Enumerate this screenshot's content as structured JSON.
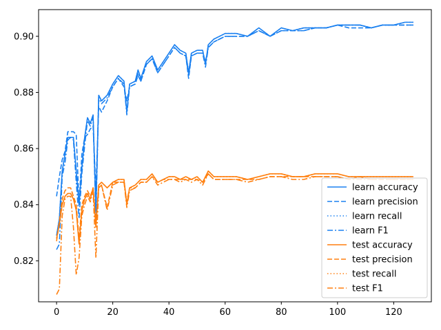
{
  "chart_data": {
    "type": "line",
    "title": "",
    "xlabel": "",
    "ylabel": "",
    "xlim": [
      -6.4,
      133.4
    ],
    "ylim": [
      0.8054,
      0.9095
    ],
    "xticks": [
      0,
      20,
      40,
      60,
      80,
      100,
      120
    ],
    "yticks": [
      0.82,
      0.84,
      0.86,
      0.88,
      0.9
    ],
    "xtick_labels": [
      "0",
      "20",
      "40",
      "60",
      "80",
      "100",
      "120"
    ],
    "ytick_labels": [
      "0.82",
      "0.84",
      "0.86",
      "0.88",
      "0.90"
    ],
    "legend_position": "lower right",
    "colors": {
      "learn": "#1a80f0",
      "test": "#ff7f0e"
    },
    "series": [
      {
        "name": "learn accuracy",
        "group": "learn",
        "style": "solid",
        "x": [
          0,
          1,
          2,
          3,
          4,
          5,
          6,
          7,
          8,
          9,
          10,
          11,
          12,
          13,
          14,
          15,
          16,
          18,
          20,
          22,
          24,
          25,
          26,
          28,
          29,
          30,
          32,
          34,
          36,
          38,
          40,
          42,
          44,
          46,
          47,
          48,
          50,
          52,
          53,
          54,
          56,
          58,
          60,
          64,
          68,
          72,
          76,
          80,
          84,
          88,
          92,
          96,
          100,
          104,
          108,
          112,
          116,
          120,
          124,
          127
        ],
        "y": [
          0.829,
          0.835,
          0.852,
          0.858,
          0.864,
          0.864,
          0.864,
          0.852,
          0.84,
          0.853,
          0.864,
          0.871,
          0.869,
          0.872,
          0.838,
          0.879,
          0.877,
          0.879,
          0.883,
          0.886,
          0.884,
          0.873,
          0.883,
          0.884,
          0.888,
          0.885,
          0.891,
          0.893,
          0.888,
          0.891,
          0.894,
          0.897,
          0.895,
          0.894,
          0.887,
          0.894,
          0.895,
          0.895,
          0.89,
          0.897,
          0.899,
          0.9,
          0.901,
          0.901,
          0.9,
          0.903,
          0.9,
          0.903,
          0.902,
          0.903,
          0.903,
          0.903,
          0.904,
          0.904,
          0.904,
          0.903,
          0.904,
          0.904,
          0.905,
          0.905
        ]
      },
      {
        "name": "learn precision",
        "group": "learn",
        "style": "dashed",
        "x": [
          0,
          1,
          2,
          3,
          4,
          5,
          6,
          7,
          8,
          9,
          10,
          11,
          12,
          13,
          14,
          15,
          16,
          18,
          20,
          22,
          24,
          25,
          26,
          28,
          29,
          30,
          32,
          34,
          36,
          38,
          40,
          42,
          44,
          46,
          47,
          48,
          50,
          52,
          53,
          54,
          56,
          58,
          60,
          64,
          68,
          72,
          76,
          80,
          84,
          88,
          92,
          96,
          100,
          104,
          108,
          112,
          116,
          120,
          124,
          127
        ],
        "y": [
          0.843,
          0.85,
          0.856,
          0.859,
          0.866,
          0.866,
          0.866,
          0.865,
          0.84,
          0.858,
          0.864,
          0.865,
          0.867,
          0.868,
          0.845,
          0.875,
          0.873,
          0.877,
          0.882,
          0.885,
          0.882,
          0.877,
          0.882,
          0.883,
          0.886,
          0.884,
          0.89,
          0.892,
          0.887,
          0.89,
          0.893,
          0.896,
          0.894,
          0.893,
          0.885,
          0.893,
          0.894,
          0.894,
          0.891,
          0.896,
          0.898,
          0.899,
          0.9,
          0.9,
          0.9,
          0.902,
          0.9,
          0.902,
          0.902,
          0.902,
          0.903,
          0.903,
          0.904,
          0.903,
          0.903,
          0.903,
          0.904,
          0.904,
          0.904,
          0.904
        ]
      },
      {
        "name": "learn recall",
        "group": "learn",
        "style": "dotted",
        "x": [
          0,
          1,
          2,
          3,
          4,
          5,
          6,
          7,
          8,
          9,
          10,
          11,
          12,
          13,
          14,
          15,
          16,
          18,
          20,
          22,
          24,
          25,
          26,
          28,
          29,
          30,
          32,
          34,
          36,
          38,
          40,
          42,
          44,
          46,
          47,
          48,
          50,
          52,
          53,
          54,
          56,
          58,
          60,
          64,
          68,
          72,
          76,
          80,
          84,
          88,
          92,
          96,
          100,
          104,
          108,
          112,
          116,
          120,
          124,
          127
        ],
        "y": [
          0.829,
          0.835,
          0.852,
          0.858,
          0.864,
          0.864,
          0.864,
          0.852,
          0.84,
          0.853,
          0.864,
          0.871,
          0.869,
          0.872,
          0.838,
          0.879,
          0.877,
          0.879,
          0.883,
          0.886,
          0.884,
          0.873,
          0.883,
          0.884,
          0.888,
          0.885,
          0.891,
          0.893,
          0.888,
          0.891,
          0.894,
          0.897,
          0.895,
          0.894,
          0.887,
          0.894,
          0.895,
          0.895,
          0.89,
          0.897,
          0.899,
          0.9,
          0.901,
          0.901,
          0.9,
          0.903,
          0.9,
          0.903,
          0.902,
          0.903,
          0.903,
          0.903,
          0.904,
          0.904,
          0.904,
          0.903,
          0.904,
          0.904,
          0.905,
          0.905
        ]
      },
      {
        "name": "learn F1",
        "group": "learn",
        "style": "dashdot",
        "x": [
          0,
          1,
          2,
          3,
          4,
          5,
          6,
          7,
          8,
          9,
          10,
          11,
          12,
          13,
          14,
          15,
          16,
          18,
          20,
          22,
          24,
          25,
          26,
          28,
          29,
          30,
          32,
          34,
          36,
          38,
          40,
          42,
          44,
          46,
          47,
          48,
          50,
          52,
          53,
          54,
          56,
          58,
          60,
          64,
          68,
          72,
          76,
          80,
          84,
          88,
          92,
          96,
          100,
          104,
          108,
          112,
          116,
          120,
          124,
          127
        ],
        "y": [
          0.824,
          0.826,
          0.85,
          0.855,
          0.863,
          0.864,
          0.863,
          0.848,
          0.835,
          0.851,
          0.861,
          0.87,
          0.868,
          0.871,
          0.835,
          0.878,
          0.876,
          0.878,
          0.882,
          0.885,
          0.883,
          0.872,
          0.882,
          0.883,
          0.887,
          0.884,
          0.89,
          0.892,
          0.887,
          0.89,
          0.893,
          0.896,
          0.894,
          0.893,
          0.886,
          0.893,
          0.894,
          0.894,
          0.889,
          0.896,
          0.898,
          0.899,
          0.9,
          0.9,
          0.9,
          0.902,
          0.9,
          0.902,
          0.902,
          0.902,
          0.903,
          0.903,
          0.904,
          0.904,
          0.904,
          0.903,
          0.904,
          0.904,
          0.904,
          0.904
        ]
      },
      {
        "name": "test accuracy",
        "group": "test",
        "style": "solid",
        "x": [
          0,
          1,
          2,
          3,
          4,
          5,
          6,
          7,
          8,
          9,
          10,
          11,
          12,
          13,
          14,
          15,
          16,
          18,
          20,
          22,
          24,
          25,
          26,
          28,
          30,
          32,
          34,
          36,
          38,
          40,
          42,
          44,
          46,
          48,
          50,
          52,
          54,
          56,
          60,
          64,
          68,
          72,
          76,
          80,
          84,
          88,
          92,
          96,
          100,
          104,
          108,
          112,
          116,
          120,
          124,
          127
        ],
        "y": [
          0.828,
          0.833,
          0.84,
          0.843,
          0.844,
          0.844,
          0.842,
          0.838,
          0.826,
          0.838,
          0.842,
          0.844,
          0.842,
          0.846,
          0.832,
          0.847,
          0.848,
          0.846,
          0.848,
          0.849,
          0.849,
          0.84,
          0.846,
          0.847,
          0.849,
          0.849,
          0.851,
          0.848,
          0.849,
          0.85,
          0.85,
          0.849,
          0.85,
          0.849,
          0.85,
          0.848,
          0.852,
          0.85,
          0.85,
          0.85,
          0.849,
          0.85,
          0.851,
          0.851,
          0.85,
          0.85,
          0.851,
          0.851,
          0.851,
          0.85,
          0.85,
          0.85,
          0.85,
          0.85,
          0.85,
          0.85
        ]
      },
      {
        "name": "test precision",
        "group": "test",
        "style": "dashed",
        "x": [
          0,
          1,
          2,
          3,
          4,
          5,
          6,
          7,
          8,
          9,
          10,
          11,
          12,
          13,
          14,
          15,
          16,
          18,
          20,
          22,
          24,
          25,
          26,
          28,
          30,
          32,
          34,
          36,
          38,
          40,
          42,
          44,
          46,
          48,
          50,
          52,
          54,
          56,
          60,
          64,
          68,
          72,
          76,
          80,
          84,
          88,
          92,
          96,
          100,
          104,
          108,
          112,
          116,
          120,
          124,
          127
        ],
        "y": [
          0.827,
          0.834,
          0.842,
          0.845,
          0.846,
          0.846,
          0.843,
          0.84,
          0.828,
          0.84,
          0.843,
          0.845,
          0.843,
          0.846,
          0.834,
          0.846,
          0.847,
          0.839,
          0.848,
          0.848,
          0.848,
          0.841,
          0.846,
          0.846,
          0.848,
          0.848,
          0.85,
          0.848,
          0.849,
          0.849,
          0.849,
          0.849,
          0.849,
          0.849,
          0.849,
          0.848,
          0.851,
          0.849,
          0.849,
          0.849,
          0.849,
          0.849,
          0.85,
          0.85,
          0.85,
          0.85,
          0.85,
          0.85,
          0.85,
          0.849,
          0.85,
          0.849,
          0.849,
          0.849,
          0.849,
          0.849
        ]
      },
      {
        "name": "test recall",
        "group": "test",
        "style": "dotted",
        "x": [
          0,
          1,
          2,
          3,
          4,
          5,
          6,
          7,
          8,
          9,
          10,
          11,
          12,
          13,
          14,
          15,
          16,
          18,
          20,
          22,
          24,
          25,
          26,
          28,
          30,
          32,
          34,
          36,
          38,
          40,
          42,
          44,
          46,
          48,
          50,
          52,
          54,
          56,
          60,
          64,
          68,
          72,
          76,
          80,
          84,
          88,
          92,
          96,
          100,
          104,
          108,
          112,
          116,
          120,
          124,
          127
        ],
        "y": [
          0.828,
          0.833,
          0.84,
          0.843,
          0.844,
          0.844,
          0.842,
          0.838,
          0.826,
          0.838,
          0.842,
          0.844,
          0.842,
          0.846,
          0.832,
          0.847,
          0.848,
          0.846,
          0.848,
          0.849,
          0.849,
          0.84,
          0.846,
          0.847,
          0.849,
          0.849,
          0.851,
          0.848,
          0.849,
          0.85,
          0.85,
          0.849,
          0.85,
          0.849,
          0.85,
          0.848,
          0.852,
          0.85,
          0.85,
          0.85,
          0.849,
          0.85,
          0.851,
          0.851,
          0.85,
          0.85,
          0.851,
          0.851,
          0.851,
          0.85,
          0.85,
          0.85,
          0.85,
          0.85,
          0.85,
          0.85
        ]
      },
      {
        "name": "test F1",
        "group": "test",
        "style": "dashdot",
        "x": [
          0,
          1,
          2,
          3,
          4,
          5,
          6,
          7,
          8,
          9,
          10,
          11,
          12,
          13,
          14,
          15,
          16,
          18,
          20,
          22,
          24,
          25,
          26,
          28,
          30,
          32,
          34,
          36,
          38,
          40,
          42,
          44,
          46,
          48,
          50,
          52,
          54,
          56,
          60,
          64,
          68,
          72,
          76,
          80,
          84,
          88,
          92,
          96,
          100,
          104,
          108,
          112,
          116,
          120,
          124,
          127
        ],
        "y": [
          0.808,
          0.81,
          0.836,
          0.842,
          0.843,
          0.843,
          0.832,
          0.815,
          0.821,
          0.836,
          0.84,
          0.843,
          0.841,
          0.845,
          0.821,
          0.846,
          0.847,
          0.838,
          0.847,
          0.848,
          0.848,
          0.839,
          0.845,
          0.846,
          0.848,
          0.848,
          0.85,
          0.847,
          0.848,
          0.849,
          0.849,
          0.848,
          0.849,
          0.848,
          0.849,
          0.847,
          0.851,
          0.849,
          0.849,
          0.849,
          0.848,
          0.849,
          0.85,
          0.85,
          0.849,
          0.849,
          0.85,
          0.85,
          0.85,
          0.849,
          0.849,
          0.849,
          0.849,
          0.849,
          0.849,
          0.849
        ]
      }
    ]
  }
}
